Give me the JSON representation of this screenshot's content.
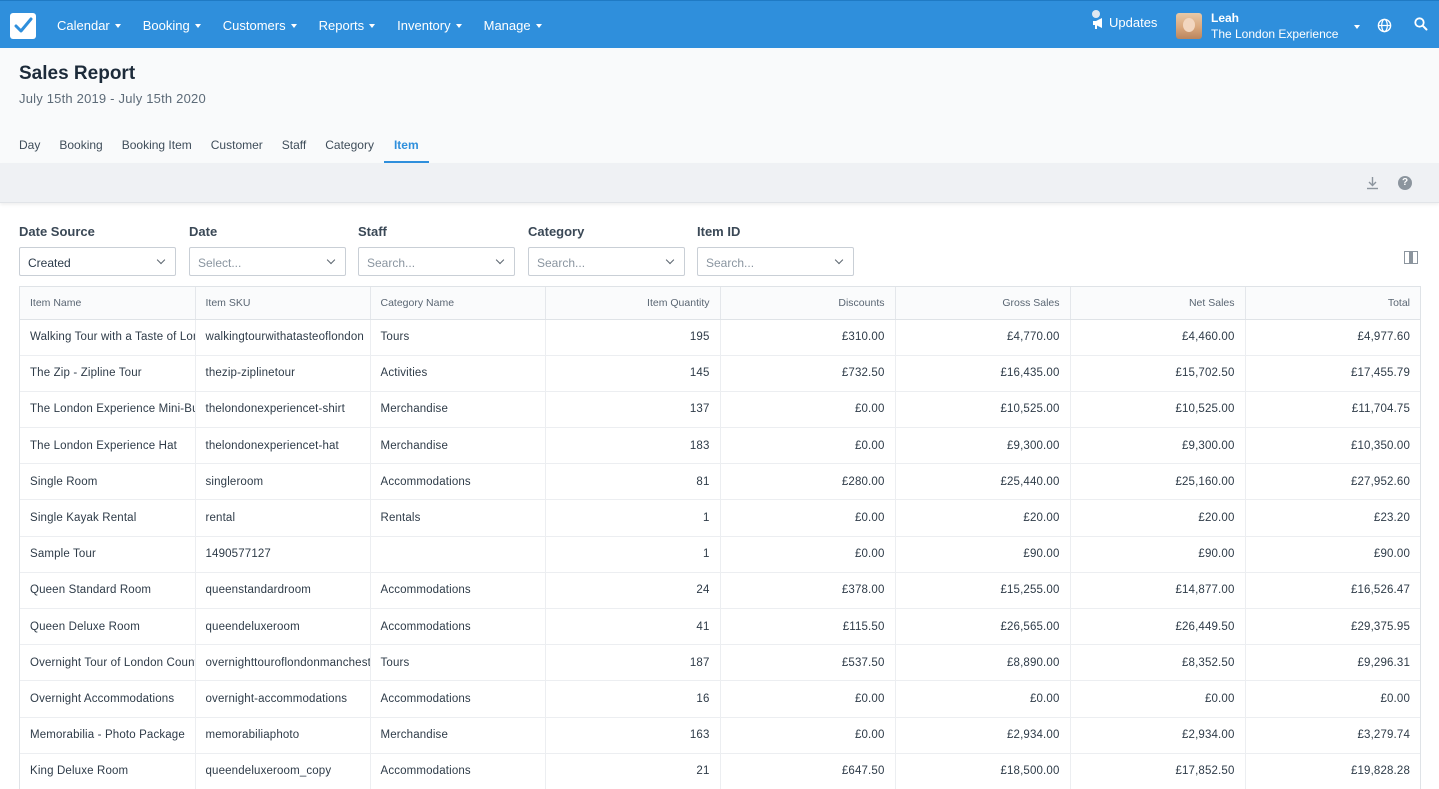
{
  "nav": {
    "items": [
      {
        "label": "Calendar"
      },
      {
        "label": "Booking"
      },
      {
        "label": "Customers"
      },
      {
        "label": "Reports"
      },
      {
        "label": "Inventory"
      },
      {
        "label": "Manage"
      }
    ],
    "updates_label": "Updates",
    "user_name": "Leah",
    "user_company": "The London Experience"
  },
  "page": {
    "title": "Sales Report",
    "date_range": "July 15th 2019 - July 15th 2020"
  },
  "tabs": [
    {
      "label": "Day",
      "active": false
    },
    {
      "label": "Booking",
      "active": false
    },
    {
      "label": "Booking Item",
      "active": false
    },
    {
      "label": "Customer",
      "active": false
    },
    {
      "label": "Staff",
      "active": false
    },
    {
      "label": "Category",
      "active": false
    },
    {
      "label": "Item",
      "active": true
    }
  ],
  "filters": [
    {
      "label": "Date Source",
      "value": "Created",
      "placeholder": ""
    },
    {
      "label": "Date",
      "value": "",
      "placeholder": "Select..."
    },
    {
      "label": "Staff",
      "value": "",
      "placeholder": "Search..."
    },
    {
      "label": "Category",
      "value": "",
      "placeholder": "Search..."
    },
    {
      "label": "Item ID",
      "value": "",
      "placeholder": "Search..."
    }
  ],
  "table": {
    "columns": [
      "Item Name",
      "Item SKU",
      "Category Name",
      "Item Quantity",
      "Discounts",
      "Gross Sales",
      "Net Sales",
      "Total"
    ],
    "rows": [
      [
        "Walking Tour with a Taste of London",
        "walkingtourwithatasteoflondon",
        "Tours",
        "195",
        "£310.00",
        "£4,770.00",
        "£4,460.00",
        "£4,977.60"
      ],
      [
        "The Zip - Zipline Tour",
        "thezip-ziplinetour",
        "Activities",
        "145",
        "£732.50",
        "£16,435.00",
        "£15,702.50",
        "£17,455.79"
      ],
      [
        "The London Experience Mini-Bus T-shirt",
        "thelondonexperiencet-shirt",
        "Merchandise",
        "137",
        "£0.00",
        "£10,525.00",
        "£10,525.00",
        "£11,704.75"
      ],
      [
        "The London Experience Hat",
        "thelondonexperiencet-hat",
        "Merchandise",
        "183",
        "£0.00",
        "£9,300.00",
        "£9,300.00",
        "£10,350.00"
      ],
      [
        "Single Room",
        "singleroom",
        "Accommodations",
        "81",
        "£280.00",
        "£25,440.00",
        "£25,160.00",
        "£27,952.60"
      ],
      [
        "Single Kayak Rental",
        "rental",
        "Rentals",
        "1",
        "£0.00",
        "£20.00",
        "£20.00",
        "£23.20"
      ],
      [
        "Sample Tour",
        "1490577127",
        "",
        "1",
        "£0.00",
        "£90.00",
        "£90.00",
        "£90.00"
      ],
      [
        "Queen Standard Room",
        "queenstandardroom",
        "Accommodations",
        "24",
        "£378.00",
        "£15,255.00",
        "£14,877.00",
        "£16,526.47"
      ],
      [
        "Queen Deluxe Room",
        "queendeluxeroom",
        "Accommodations",
        "41",
        "£115.50",
        "£26,565.00",
        "£26,449.50",
        "£29,375.95"
      ],
      [
        "Overnight Tour of London Countryside",
        "overnighttouroflondonmanchester",
        "Tours",
        "187",
        "£537.50",
        "£8,890.00",
        "£8,352.50",
        "£9,296.31"
      ],
      [
        "Overnight Accommodations",
        "overnight-accommodations",
        "Accommodations",
        "16",
        "£0.00",
        "£0.00",
        "£0.00",
        "£0.00"
      ],
      [
        "Memorabilia - Photo Package",
        "memorabiliaphoto",
        "Merchandise",
        "163",
        "£0.00",
        "£2,934.00",
        "£2,934.00",
        "£3,279.74"
      ],
      [
        "King Deluxe Room",
        "queendeluxeroom_copy",
        "Accommodations",
        "21",
        "£647.50",
        "£18,500.00",
        "£17,852.50",
        "£19,828.28"
      ]
    ]
  }
}
